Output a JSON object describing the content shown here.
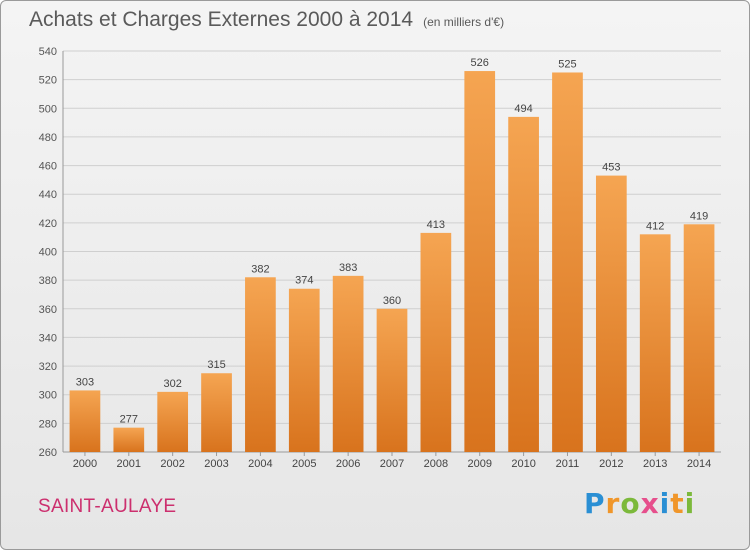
{
  "title": "Achats et Charges Externes 2000 à 2014",
  "unit": "(en milliers d'€)",
  "commune": "SAINT-AULAYE",
  "logo": {
    "letters": [
      "P",
      "r",
      "o",
      "x",
      "i",
      "t",
      "i"
    ],
    "colors": [
      "#2a8fd4",
      "#f0962a",
      "#7cb93b",
      "#e64f8c",
      "#2a8fd4",
      "#f0962a",
      "#7cb93b"
    ]
  },
  "colors": {
    "bar_top": "#f5a552",
    "bar_bottom": "#d8731d",
    "grid": "#cfcfcf"
  },
  "chart_data": {
    "type": "bar",
    "categories": [
      "2000",
      "2001",
      "2002",
      "2003",
      "2004",
      "2005",
      "2006",
      "2007",
      "2008",
      "2009",
      "2010",
      "2011",
      "2012",
      "2013",
      "2014"
    ],
    "values": [
      303,
      277,
      302,
      315,
      382,
      374,
      383,
      360,
      413,
      526,
      494,
      525,
      453,
      412,
      419
    ],
    "ylim": [
      260,
      540
    ],
    "yticks": [
      260,
      280,
      300,
      320,
      340,
      360,
      380,
      400,
      420,
      440,
      460,
      480,
      500,
      520,
      540
    ],
    "data_labels": true,
    "grid": true
  }
}
